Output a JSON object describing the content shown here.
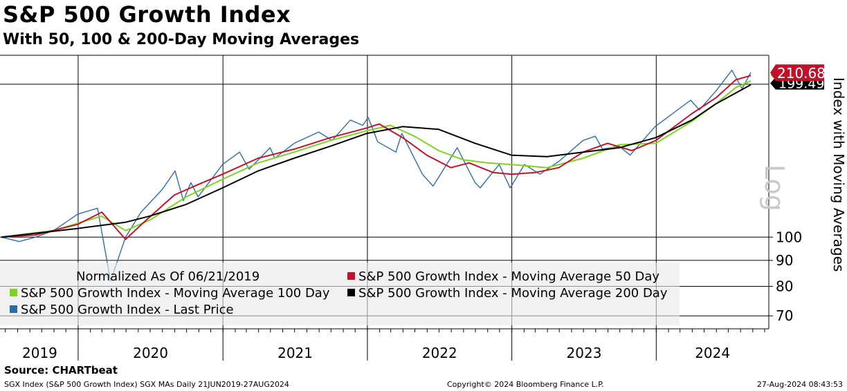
{
  "title": "S&P 500 Growth Index",
  "subtitle": "With 50, 100 & 200-Day Moving Averages",
  "source": "Source: CHARTbeat",
  "footer": {
    "left": "SGX Index (S&P 500 Growth Index) SGX MAs  Daily 21JUN2019-27AUG2024",
    "center": "Copyright© 2024 Bloomberg Finance L.P.",
    "right": "27-Aug-2024 08:43:53"
  },
  "colors": {
    "last_price": "#2e6da4",
    "ma50": "#c0132b",
    "ma100": "#7ed321",
    "ma200": "#000000",
    "label_red": "#c0132b",
    "label_green": "#7ed321",
    "grid": "#000000",
    "legend_bg": "#e8e8e8"
  },
  "legend": {
    "note": "Normalized As Of 06/21/2019",
    "ma50": "S&P 500 Growth Index - Moving Average 50 Day",
    "ma100": "S&P 500 Growth Index - Moving Average 100 Day",
    "ma200": "S&P 500 Growth Index - Moving Average 200 Day",
    "last": "S&P 500 Growth Index - Last Price"
  },
  "chart_data": {
    "type": "line",
    "title": "S&P 500 Growth Index",
    "subtitle": "With 50, 100 & 200-Day Moving Averages",
    "ylabel": "Index with Moving Averages",
    "y_scale_label": "Log",
    "y_scale": "log",
    "ylim": [
      66,
      228
    ],
    "y_ticks": [
      70,
      80,
      90,
      100
    ],
    "x_ticks": [
      "2019",
      "2020",
      "2021",
      "2022",
      "2023",
      "2024"
    ],
    "xlim": [
      "2019-06-21",
      "2024-08-27"
    ],
    "last_values": {
      "last_price": "210.68",
      "ma200": "199.49"
    },
    "series": [
      {
        "name": "S&P 500 Growth Index - Last Price",
        "color": "#2e6da4",
        "x": [
          "2019-06-21",
          "2019-08-05",
          "2019-09-15",
          "2019-10-31",
          "2019-12-31",
          "2020-02-19",
          "2020-03-23",
          "2020-04-30",
          "2020-06-08",
          "2020-07-31",
          "2020-09-02",
          "2020-09-23",
          "2020-10-12",
          "2020-10-30",
          "2020-12-31",
          "2021-02-12",
          "2021-03-08",
          "2021-04-30",
          "2021-05-12",
          "2021-06-30",
          "2021-08-31",
          "2021-10-04",
          "2021-11-19",
          "2021-12-20",
          "2022-01-03",
          "2022-01-27",
          "2022-03-14",
          "2022-03-29",
          "2022-05-20",
          "2022-06-16",
          "2022-08-16",
          "2022-09-30",
          "2022-10-13",
          "2022-11-30",
          "2022-12-28",
          "2023-02-02",
          "2023-03-13",
          "2023-04-30",
          "2023-06-30",
          "2023-07-31",
          "2023-08-18",
          "2023-09-29",
          "2023-10-27",
          "2023-12-29",
          "2024-03-28",
          "2024-04-19",
          "2024-05-31",
          "2024-07-10",
          "2024-08-05",
          "2024-08-27"
        ],
        "values": [
          100,
          98,
          100,
          103,
          111,
          114,
          82,
          100,
          112,
          124,
          135,
          118,
          128,
          120,
          139,
          147,
          136,
          150,
          143,
          153,
          161,
          155,
          170,
          166,
          172,
          154,
          147,
          160,
          133,
          126,
          150,
          128,
          125,
          139,
          125,
          139,
          133,
          141,
          155,
          158,
          149,
          151,
          145,
          165,
          186,
          178,
          194,
          213,
          196,
          211
        ]
      },
      {
        "name": "S&P 500 Growth Index - Moving Average 50 Day",
        "color": "#c0132b",
        "x": [
          "2019-06-21",
          "2019-09-15",
          "2019-12-31",
          "2020-03-01",
          "2020-04-30",
          "2020-06-15",
          "2020-08-31",
          "2020-10-31",
          "2020-12-31",
          "2021-03-31",
          "2021-06-30",
          "2021-09-30",
          "2021-12-31",
          "2022-01-31",
          "2022-03-31",
          "2022-05-31",
          "2022-07-31",
          "2022-09-15",
          "2022-11-15",
          "2022-12-31",
          "2023-02-28",
          "2023-04-30",
          "2023-06-30",
          "2023-08-31",
          "2023-10-31",
          "2023-12-31",
          "2024-03-31",
          "2024-05-31",
          "2024-07-20",
          "2024-08-27"
        ],
        "values": [
          100,
          101,
          106,
          112,
          99,
          107,
          121,
          127,
          133,
          143,
          149,
          157,
          164,
          167,
          157,
          145,
          137,
          140,
          134,
          133,
          134,
          137,
          147,
          153,
          148,
          155,
          175,
          188,
          204,
          208
        ]
      },
      {
        "name": "S&P 500 Growth Index - Moving Average 100 Day",
        "color": "#7ed321",
        "x": [
          "2019-06-21",
          "2019-10-31",
          "2020-02-29",
          "2020-04-30",
          "2020-06-30",
          "2020-09-30",
          "2020-12-31",
          "2021-03-31",
          "2021-06-30",
          "2021-09-30",
          "2021-12-31",
          "2022-02-28",
          "2022-04-30",
          "2022-06-30",
          "2022-08-31",
          "2022-10-31",
          "2022-12-31",
          "2023-03-31",
          "2023-06-30",
          "2023-09-30",
          "2023-12-31",
          "2024-03-31",
          "2024-05-31",
          "2024-07-20",
          "2024-08-27"
        ],
        "values": [
          100,
          103,
          110,
          103,
          108,
          120,
          130,
          140,
          147,
          155,
          162,
          166,
          158,
          148,
          142,
          140,
          139,
          137,
          143,
          152,
          153,
          169,
          183,
          197,
          203
        ]
      },
      {
        "name": "S&P 500 Growth Index - Moving Average 200 Day",
        "color": "#000000",
        "x": [
          "2019-06-21",
          "2019-12-31",
          "2020-04-30",
          "2020-06-30",
          "2020-09-30",
          "2020-12-31",
          "2021-03-31",
          "2021-06-30",
          "2021-09-30",
          "2021-12-31",
          "2022-03-31",
          "2022-06-30",
          "2022-09-30",
          "2022-12-31",
          "2023-03-31",
          "2023-06-30",
          "2023-09-30",
          "2023-12-31",
          "2024-03-31",
          "2024-05-31",
          "2024-08-27"
        ],
        "values": [
          100,
          104,
          107,
          110,
          116,
          125,
          135,
          143,
          151,
          160,
          165,
          163,
          153,
          145,
          144,
          147,
          150,
          157,
          170,
          183,
          199.49
        ]
      }
    ]
  }
}
